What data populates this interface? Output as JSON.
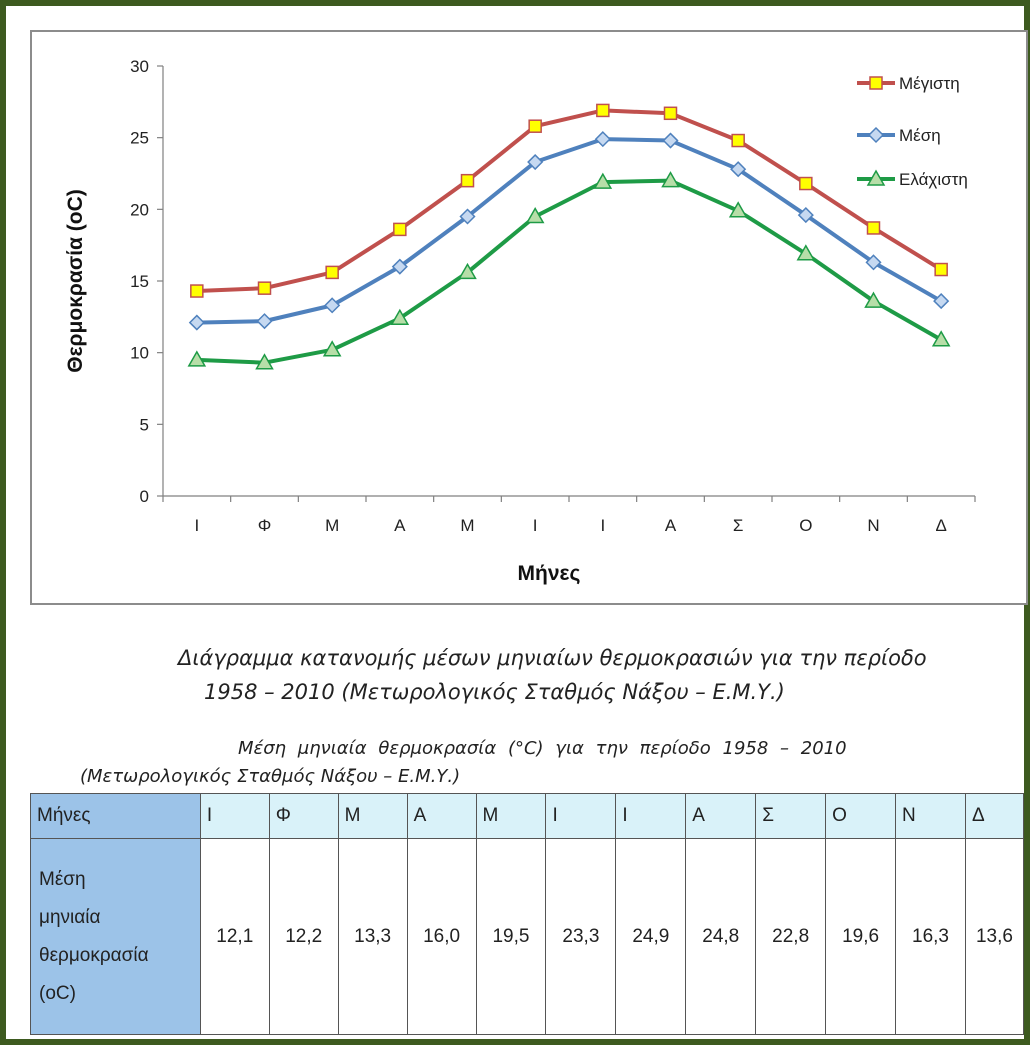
{
  "chart_data": {
    "type": "line",
    "categories": [
      "Ι",
      "Φ",
      "Μ",
      "Α",
      "Μ",
      "Ι",
      "Ι",
      "Α",
      "Σ",
      "Ο",
      "Ν",
      "Δ"
    ],
    "series": [
      {
        "name": "Μέγιστη",
        "color": "#c0504d",
        "marker": "square",
        "marker_color": "#ffff00",
        "values": [
          14.3,
          14.5,
          15.6,
          18.6,
          22.0,
          25.8,
          26.9,
          26.7,
          24.8,
          21.8,
          18.7,
          15.8
        ]
      },
      {
        "name": "Μέση",
        "color": "#4f81bd",
        "marker": "diamond",
        "marker_color": "#c6d9f1",
        "values": [
          12.1,
          12.2,
          13.3,
          16.0,
          19.5,
          23.3,
          24.9,
          24.8,
          22.8,
          19.6,
          16.3,
          13.6
        ]
      },
      {
        "name": "Ελάχιστη",
        "color": "#1e9b46",
        "marker": "triangle",
        "marker_color": "#b7dea8",
        "values": [
          9.5,
          9.3,
          10.2,
          12.4,
          15.6,
          19.5,
          21.9,
          22.0,
          19.9,
          16.9,
          13.6,
          10.9
        ]
      }
    ],
    "ylabel": "Θερμοκρασία (oC)",
    "xlabel": "Μήνες",
    "ylim": [
      0,
      30
    ],
    "yticks": [
      0,
      5,
      10,
      15,
      20,
      25,
      30
    ],
    "grid": false,
    "legend": "top-right"
  },
  "captions": {
    "chart_line1": "Διάγραμμα κατανομής μέσων μηνιαίων θερμοκρασιών για την περίοδο",
    "chart_line2": "1958 – 2010 (Μετωρολογικός Σταθμός Νάξου – Ε.Μ.Υ.)",
    "table_line1": "Μέση μηνιαία θερμοκρασία (°C) για την περίοδο 1958 – 2010",
    "table_line2": "(Μετωρολογικός Σταθμός Νάξου – Ε.Μ.Υ.)"
  },
  "table": {
    "header_label": "Μήνες",
    "months": [
      "Ι",
      "Φ",
      "Μ",
      "Α",
      "Μ",
      "Ι",
      "Ι",
      "Α",
      "Σ",
      "Ο",
      "Ν",
      "Δ"
    ],
    "row_label_lines": [
      "Μέση",
      "μηνιαία",
      "θερμοκρασία",
      "(oC)"
    ],
    "values": [
      "12,1",
      "12,2",
      "13,3",
      "16,0",
      "19,5",
      "23,3",
      "24,9",
      "24,8",
      "22,8",
      "19,6",
      "16,3",
      "13,6"
    ]
  }
}
